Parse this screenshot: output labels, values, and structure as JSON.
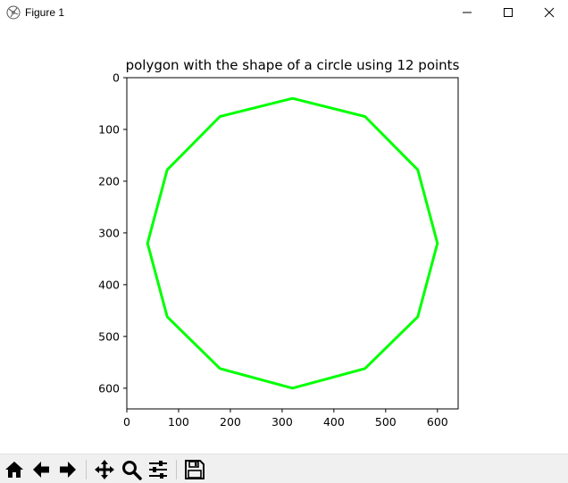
{
  "window": {
    "title": "Figure 1",
    "icons": [
      "app-icon",
      "minimize-icon",
      "maximize-icon",
      "close-icon"
    ]
  },
  "figure": {
    "chart_data": {
      "type": "line",
      "title": "polygon with the shape of a circle using 12 points",
      "xlabel": "",
      "ylabel": "",
      "xlim": [
        0,
        640
      ],
      "ylim": [
        640,
        0
      ],
      "y_inverted": true,
      "x_ticks": [
        0,
        100,
        200,
        300,
        400,
        500,
        600
      ],
      "y_ticks": [
        0,
        100,
        200,
        300,
        400,
        500,
        600
      ],
      "grid": false,
      "series": [
        {
          "color": "#00ff00",
          "closed": true,
          "x": [
            320,
            460,
            562,
            600,
            562,
            460,
            320,
            180,
            78,
            40,
            78,
            180
          ],
          "y": [
            40,
            75,
            178,
            320,
            462,
            562,
            600,
            562,
            462,
            320,
            178,
            75
          ]
        }
      ]
    }
  },
  "toolbar": {
    "buttons": [
      {
        "name": "home-button",
        "icon": "home-icon"
      },
      {
        "name": "back-button",
        "icon": "arrow-left-icon"
      },
      {
        "name": "forward-button",
        "icon": "arrow-right-icon"
      },
      {
        "name": "pan-button",
        "icon": "move-icon"
      },
      {
        "name": "zoom-button",
        "icon": "magnifier-icon"
      },
      {
        "name": "configure-subplots-button",
        "icon": "sliders-icon"
      },
      {
        "name": "save-button",
        "icon": "floppy-disk-icon"
      }
    ]
  }
}
